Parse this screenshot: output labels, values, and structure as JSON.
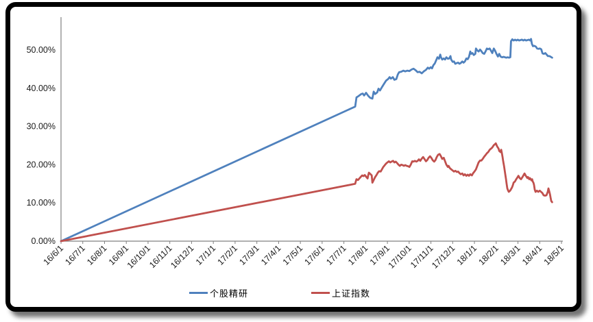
{
  "page": {
    "background_color": "#ffffff",
    "frame_color": "#000000",
    "text_color": "#1a1a1a"
  },
  "chart_data": {
    "type": "line",
    "title": "",
    "xlabel": "",
    "ylabel": "",
    "grid": false,
    "legend_position": "bottom-center",
    "axis_color": "#808080",
    "x_axis": {
      "unit": "month index, 0 = 16/6/1 … 23 = 18/5/1 (series points use fractional months)",
      "rotation_deg": -45,
      "labels": [
        "16/6/1",
        "16/7/1",
        "16/8/1",
        "16/9/1",
        "16/10/1",
        "16/11/1",
        "16/12/1",
        "17/1/1",
        "17/2/1",
        "17/3/1",
        "17/4/1",
        "17/5/1",
        "17/6/1",
        "17/7/1",
        "17/8/1",
        "17/9/1",
        "17/10/1",
        "17/11/1",
        "17/12/1",
        "18/1/1",
        "18/2/1",
        "18/3/1",
        "18/4/1",
        "18/5/1"
      ],
      "xlim": [
        0,
        23.05
      ]
    },
    "y_axis": {
      "format": "percent",
      "ylim": [
        0,
        58.5
      ],
      "ticks": [
        {
          "value": 0,
          "label": "0.00%"
        },
        {
          "value": 10,
          "label": "10.00%"
        },
        {
          "value": 20,
          "label": "20.00%"
        },
        {
          "value": 30,
          "label": "30.00%"
        },
        {
          "value": 40,
          "label": "40.00%"
        },
        {
          "value": 50,
          "label": "50.00%"
        }
      ]
    },
    "series": [
      {
        "name": "个股精研",
        "color": "#4F81BD",
        "points": [
          [
            0,
            0
          ],
          [
            13.52,
            35.2
          ],
          [
            13.58,
            37.6
          ],
          [
            13.66,
            37.9
          ],
          [
            13.8,
            38.5
          ],
          [
            13.87,
            38.6
          ],
          [
            13.93,
            38.1
          ],
          [
            14.02,
            38.8
          ],
          [
            14.12,
            38.0
          ],
          [
            14.21,
            37.5
          ],
          [
            14.31,
            37.3
          ],
          [
            14.37,
            39.1
          ],
          [
            14.44,
            38.5
          ],
          [
            14.53,
            38.9
          ],
          [
            14.59,
            39.9
          ],
          [
            14.66,
            39.4
          ],
          [
            14.75,
            40.3
          ],
          [
            14.85,
            41.2
          ],
          [
            14.94,
            42.0
          ],
          [
            15.03,
            42.4
          ],
          [
            15.1,
            42.9
          ],
          [
            15.16,
            42.5
          ],
          [
            15.25,
            42.9
          ],
          [
            15.32,
            42.2
          ],
          [
            15.41,
            42.4
          ],
          [
            15.48,
            43.6
          ],
          [
            15.54,
            44.2
          ],
          [
            15.63,
            44.3
          ],
          [
            15.73,
            44.6
          ],
          [
            15.82,
            44.4
          ],
          [
            15.92,
            44.6
          ],
          [
            16.01,
            44.5
          ],
          [
            16.11,
            44.9
          ],
          [
            16.2,
            45.1
          ],
          [
            16.3,
            44.7
          ],
          [
            16.39,
            44.2
          ],
          [
            16.48,
            44.3
          ],
          [
            16.58,
            43.9
          ],
          [
            16.67,
            44.4
          ],
          [
            16.77,
            44.8
          ],
          [
            16.86,
            45.4
          ],
          [
            16.92,
            45.1
          ],
          [
            16.99,
            45.5
          ],
          [
            17.05,
            45.2
          ],
          [
            17.11,
            46.0
          ],
          [
            17.18,
            46.5
          ],
          [
            17.24,
            47.3
          ],
          [
            17.3,
            48.1
          ],
          [
            17.37,
            47.7
          ],
          [
            17.43,
            48.8
          ],
          [
            17.46,
            48.1
          ],
          [
            17.52,
            47.5
          ],
          [
            17.59,
            47.8
          ],
          [
            17.65,
            47.5
          ],
          [
            17.71,
            48.1
          ],
          [
            17.78,
            47.7
          ],
          [
            17.84,
            47.8
          ],
          [
            17.9,
            48.4
          ],
          [
            17.93,
            47.5
          ],
          [
            18.0,
            46.9
          ],
          [
            18.06,
            47.0
          ],
          [
            18.12,
            46.4
          ],
          [
            18.19,
            46.6
          ],
          [
            18.25,
            46.7
          ],
          [
            18.31,
            46.4
          ],
          [
            18.37,
            46.6
          ],
          [
            18.44,
            47.0
          ],
          [
            18.5,
            46.7
          ],
          [
            18.56,
            47.0
          ],
          [
            18.63,
            47.8
          ],
          [
            18.69,
            47.6
          ],
          [
            18.75,
            48.2
          ],
          [
            18.81,
            49.6
          ],
          [
            18.85,
            49.0
          ],
          [
            18.91,
            49.2
          ],
          [
            18.97,
            48.7
          ],
          [
            19.04,
            49.0
          ],
          [
            19.07,
            50.4
          ],
          [
            19.13,
            49.9
          ],
          [
            19.19,
            49.6
          ],
          [
            19.26,
            50.1
          ],
          [
            19.32,
            49.7
          ],
          [
            19.38,
            49.2
          ],
          [
            19.45,
            49.0
          ],
          [
            19.51,
            49.6
          ],
          [
            19.57,
            50.4
          ],
          [
            19.63,
            50.2
          ],
          [
            19.7,
            50.4
          ],
          [
            19.76,
            49.8
          ],
          [
            19.82,
            49.2
          ],
          [
            19.89,
            50.4
          ],
          [
            19.95,
            49.8
          ],
          [
            20.02,
            48.9
          ],
          [
            20.08,
            48.3
          ],
          [
            20.14,
            49.0
          ],
          [
            20.2,
            48.3
          ],
          [
            20.27,
            48.1
          ],
          [
            20.34,
            48.2
          ],
          [
            20.4,
            48.1
          ],
          [
            20.46,
            48.0
          ],
          [
            20.53,
            48.1
          ],
          [
            20.59,
            48.0
          ],
          [
            20.65,
            48.1
          ],
          [
            20.68,
            52.3
          ],
          [
            20.74,
            52.8
          ],
          [
            20.8,
            52.5
          ],
          [
            20.87,
            52.7
          ],
          [
            20.93,
            52.5
          ],
          [
            20.99,
            52.7
          ],
          [
            21.06,
            52.5
          ],
          [
            21.12,
            52.6
          ],
          [
            21.18,
            52.7
          ],
          [
            21.25,
            52.5
          ],
          [
            21.31,
            52.7
          ],
          [
            21.37,
            52.5
          ],
          [
            21.44,
            52.6
          ],
          [
            21.5,
            52.7
          ],
          [
            21.56,
            52.5
          ],
          [
            21.6,
            52.9
          ],
          [
            21.64,
            51.6
          ],
          [
            21.69,
            51.0
          ],
          [
            21.75,
            51.1
          ],
          [
            21.82,
            50.9
          ],
          [
            21.88,
            50.4
          ],
          [
            21.94,
            50.3
          ],
          [
            22.01,
            50.4
          ],
          [
            22.07,
            50.2
          ],
          [
            22.13,
            49.1
          ],
          [
            22.2,
            49.0
          ],
          [
            22.26,
            49.2
          ],
          [
            22.32,
            48.8
          ],
          [
            22.38,
            48.4
          ],
          [
            22.45,
            48.4
          ],
          [
            22.51,
            48.2
          ],
          [
            22.57,
            48.0
          ]
        ]
      },
      {
        "name": "上证指数",
        "color": "#C0504D",
        "points": [
          [
            0,
            0
          ],
          [
            13.52,
            15.0
          ],
          [
            13.55,
            15.7
          ],
          [
            13.58,
            16.2
          ],
          [
            13.65,
            16.0
          ],
          [
            13.71,
            16.4
          ],
          [
            13.77,
            16.8
          ],
          [
            13.84,
            17.2
          ],
          [
            13.9,
            17.0
          ],
          [
            13.96,
            17.3
          ],
          [
            14.03,
            16.8
          ],
          [
            14.09,
            16.4
          ],
          [
            14.12,
            17.3
          ],
          [
            14.15,
            17.9
          ],
          [
            14.21,
            17.6
          ],
          [
            14.28,
            17.2
          ],
          [
            14.31,
            15.3
          ],
          [
            14.37,
            16.0
          ],
          [
            14.44,
            16.8
          ],
          [
            14.5,
            17.3
          ],
          [
            14.56,
            17.9
          ],
          [
            14.62,
            18.3
          ],
          [
            14.69,
            18.2
          ],
          [
            14.75,
            18.8
          ],
          [
            14.81,
            19.4
          ],
          [
            14.88,
            19.9
          ],
          [
            14.94,
            20.3
          ],
          [
            15.0,
            20.6
          ],
          [
            15.07,
            20.9
          ],
          [
            15.13,
            20.6
          ],
          [
            15.19,
            20.8
          ],
          [
            15.26,
            21.0
          ],
          [
            15.32,
            20.6
          ],
          [
            15.38,
            20.8
          ],
          [
            15.45,
            20.4
          ],
          [
            15.51,
            20.0
          ],
          [
            15.57,
            19.7
          ],
          [
            15.63,
            20.0
          ],
          [
            15.7,
            19.9
          ],
          [
            15.76,
            19.7
          ],
          [
            15.82,
            19.9
          ],
          [
            15.89,
            19.7
          ],
          [
            15.95,
            19.6
          ],
          [
            16.01,
            19.4
          ],
          [
            16.07,
            20.0
          ],
          [
            16.14,
            20.9
          ],
          [
            16.2,
            20.8
          ],
          [
            16.26,
            21.0
          ],
          [
            16.33,
            20.8
          ],
          [
            16.39,
            21.0
          ],
          [
            16.45,
            21.4
          ],
          [
            16.51,
            21.0
          ],
          [
            16.58,
            21.6
          ],
          [
            16.64,
            22.0
          ],
          [
            16.7,
            21.5
          ],
          [
            16.77,
            20.9
          ],
          [
            16.83,
            21.2
          ],
          [
            16.89,
            21.8
          ],
          [
            16.96,
            22.2
          ],
          [
            17.02,
            21.8
          ],
          [
            17.08,
            21.2
          ],
          [
            17.15,
            20.8
          ],
          [
            17.21,
            21.2
          ],
          [
            17.27,
            22.0
          ],
          [
            17.33,
            22.6
          ],
          [
            17.4,
            22.8
          ],
          [
            17.46,
            22.2
          ],
          [
            17.52,
            21.5
          ],
          [
            17.59,
            21.8
          ],
          [
            17.65,
            20.9
          ],
          [
            17.71,
            20.0
          ],
          [
            17.78,
            19.4
          ],
          [
            17.81,
            19.7
          ],
          [
            17.87,
            19.1
          ],
          [
            17.93,
            18.8
          ],
          [
            18.0,
            18.5
          ],
          [
            18.06,
            18.2
          ],
          [
            18.12,
            18.4
          ],
          [
            18.19,
            18.1
          ],
          [
            18.25,
            18.2
          ],
          [
            18.31,
            17.8
          ],
          [
            18.37,
            17.5
          ],
          [
            18.44,
            17.7
          ],
          [
            18.5,
            17.2
          ],
          [
            18.56,
            17.5
          ],
          [
            18.63,
            17.1
          ],
          [
            18.69,
            17.4
          ],
          [
            18.75,
            17.1
          ],
          [
            18.81,
            17.5
          ],
          [
            18.88,
            17.2
          ],
          [
            18.94,
            17.8
          ],
          [
            19.0,
            18.2
          ],
          [
            19.07,
            18.8
          ],
          [
            19.13,
            19.7
          ],
          [
            19.19,
            20.6
          ],
          [
            19.26,
            21.1
          ],
          [
            19.32,
            21.1
          ],
          [
            19.38,
            21.5
          ],
          [
            19.45,
            22.1
          ],
          [
            19.51,
            22.5
          ],
          [
            19.57,
            23.0
          ],
          [
            19.63,
            23.3
          ],
          [
            19.7,
            23.9
          ],
          [
            19.76,
            24.2
          ],
          [
            19.82,
            24.5
          ],
          [
            19.89,
            25.1
          ],
          [
            19.95,
            25.4
          ],
          [
            19.98,
            25.6
          ],
          [
            20.04,
            24.8
          ],
          [
            20.11,
            24.2
          ],
          [
            20.14,
            23.6
          ],
          [
            20.2,
            23.3
          ],
          [
            20.23,
            23.9
          ],
          [
            20.26,
            23.0
          ],
          [
            20.29,
            22.1
          ],
          [
            20.32,
            20.9
          ],
          [
            20.36,
            19.7
          ],
          [
            20.39,
            18.5
          ],
          [
            20.42,
            17.4
          ],
          [
            20.45,
            16.2
          ],
          [
            20.48,
            15.0
          ],
          [
            20.51,
            13.8
          ],
          [
            20.55,
            13.2
          ],
          [
            20.58,
            12.9
          ],
          [
            20.64,
            13.2
          ],
          [
            20.67,
            13.5
          ],
          [
            20.73,
            14.1
          ],
          [
            20.77,
            14.7
          ],
          [
            20.8,
            15.3
          ],
          [
            20.86,
            15.6
          ],
          [
            20.92,
            16.2
          ],
          [
            20.99,
            16.8
          ],
          [
            21.02,
            17.1
          ],
          [
            21.08,
            16.5
          ],
          [
            21.14,
            16.2
          ],
          [
            21.21,
            16.8
          ],
          [
            21.27,
            17.4
          ],
          [
            21.3,
            17.7
          ],
          [
            21.36,
            17.1
          ],
          [
            21.43,
            16.5
          ],
          [
            21.46,
            16.8
          ],
          [
            21.52,
            16.2
          ],
          [
            21.55,
            16.5
          ],
          [
            21.62,
            15.9
          ],
          [
            21.65,
            16.2
          ],
          [
            21.68,
            15.6
          ],
          [
            21.71,
            15.3
          ],
          [
            21.74,
            14.7
          ],
          [
            21.77,
            13.5
          ],
          [
            21.81,
            12.9
          ],
          [
            21.87,
            13.2
          ],
          [
            21.93,
            12.9
          ],
          [
            22.0,
            13.2
          ],
          [
            22.06,
            12.9
          ],
          [
            22.12,
            12.6
          ],
          [
            22.18,
            12.0
          ],
          [
            22.25,
            11.9
          ],
          [
            22.31,
            12.0
          ],
          [
            22.37,
            12.9
          ],
          [
            22.4,
            13.8
          ],
          [
            22.43,
            13.2
          ],
          [
            22.47,
            12.3
          ],
          [
            22.5,
            11.4
          ],
          [
            22.53,
            10.5
          ],
          [
            22.57,
            10.2
          ]
        ]
      }
    ]
  }
}
